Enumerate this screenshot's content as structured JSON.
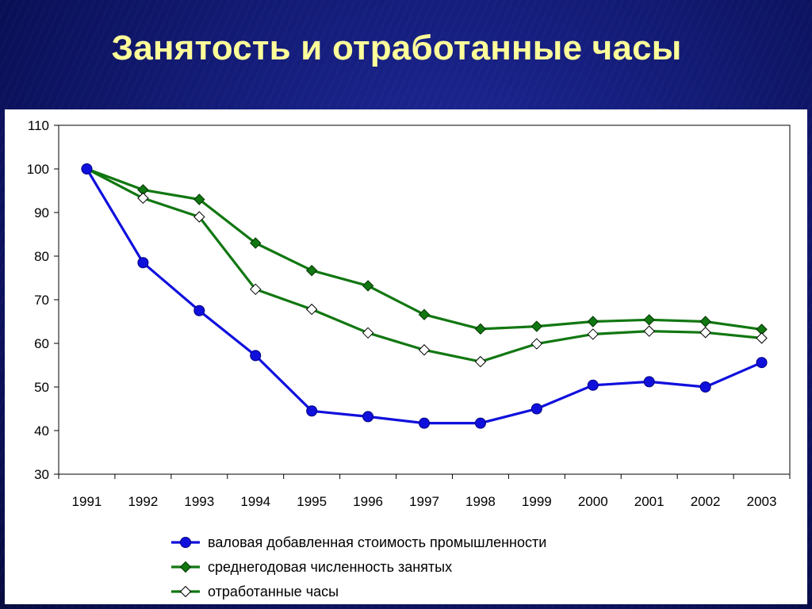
{
  "title": "Занятость и отработанные часы",
  "chart_data": {
    "type": "line",
    "title": "Занятость и отработанные часы",
    "xlabel": "",
    "ylabel": "",
    "categories": [
      "1991",
      "1992",
      "1993",
      "1994",
      "1995",
      "1996",
      "1997",
      "1998",
      "1999",
      "2000",
      "2001",
      "2002",
      "2003"
    ],
    "ylim": [
      30,
      110
    ],
    "yticks": [
      30,
      40,
      50,
      60,
      70,
      80,
      90,
      100,
      110
    ],
    "grid": false,
    "legend_position": "bottom",
    "series": [
      {
        "name": "валовая добавленная стоимость промышленности",
        "color": "#1010dd",
        "marker": "circle",
        "values": [
          100,
          78.5,
          67.5,
          57.2,
          44.5,
          43.2,
          41.7,
          41.7,
          45.0,
          50.4,
          51.2,
          50.0,
          55.6
        ]
      },
      {
        "name": "среднегодовая численность занятых",
        "color": "#117711",
        "marker": "diamond-filled",
        "values": [
          100,
          95.2,
          93.0,
          83.0,
          76.7,
          73.2,
          66.6,
          63.3,
          63.9,
          65.0,
          65.4,
          65.0,
          63.2
        ]
      },
      {
        "name": "отработанные часы",
        "color": "#117711",
        "marker": "diamond-open",
        "values": [
          100,
          93.3,
          89.0,
          72.4,
          67.8,
          62.4,
          58.5,
          55.8,
          59.9,
          62.1,
          62.8,
          62.5,
          61.2
        ]
      }
    ]
  }
}
